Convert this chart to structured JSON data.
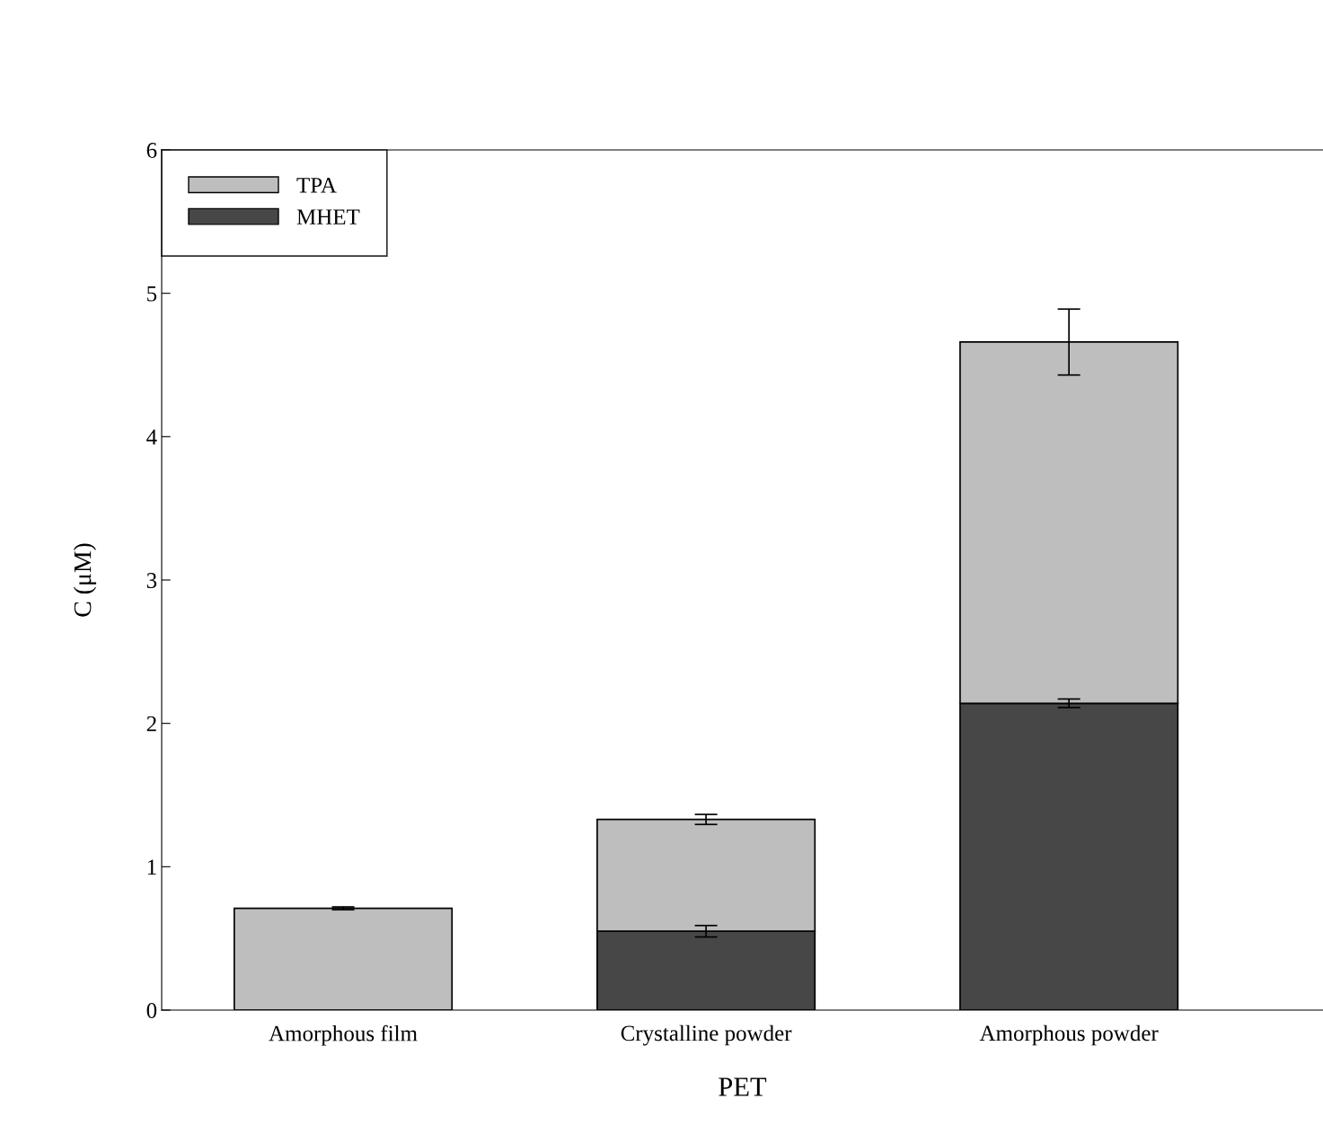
{
  "chart_data": {
    "type": "bar",
    "stacked": true,
    "xlabel": "PET",
    "ylabel": "C (μM)",
    "categories": [
      "Amorphous film",
      "Crystalline powder",
      "Amorphous powder"
    ],
    "series": [
      {
        "name": "MHET",
        "color": "#474747",
        "values": [
          0,
          0.55,
          2.14
        ],
        "errors": [
          null,
          0.04,
          0.03
        ]
      },
      {
        "name": "TPA",
        "color": "#bebebe",
        "values": [
          0.71,
          0.78,
          2.52
        ],
        "errors": [
          0.01,
          0.035,
          0.23
        ]
      }
    ],
    "ylim": [
      0,
      6
    ],
    "yticks": [
      0,
      1,
      2,
      3,
      4,
      5,
      6
    ],
    "legend": "top left",
    "grid": false
  }
}
